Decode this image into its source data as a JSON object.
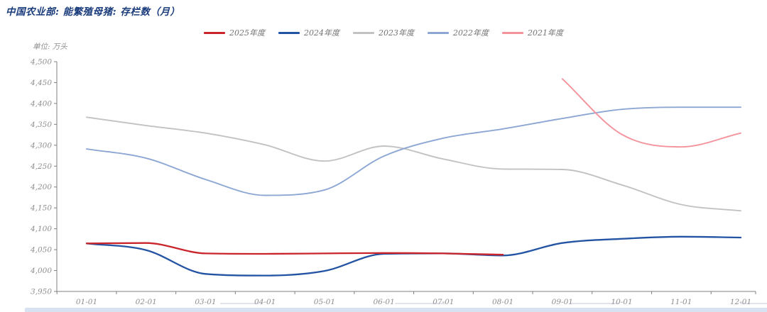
{
  "header": {
    "title": "中国农业部: 能繁殖母猪: 存栏数（月）"
  },
  "chart": {
    "unit_label": "单位: 万头",
    "axis_color": "#808080",
    "tick_label_color": "#8e8e8e",
    "background": "#ffffff"
  },
  "chart_data": {
    "type": "line",
    "title": "中国农业部: 能繁殖母猪: 存栏数（月）",
    "ylabel": "单位: 万头",
    "xlabel": "",
    "categories": [
      "01-01",
      "02-01",
      "03-01",
      "04-01",
      "05-01",
      "06-01",
      "07-01",
      "08-01",
      "09-01",
      "10-01",
      "11-01",
      "12-01"
    ],
    "ylim": [
      3950,
      4500
    ],
    "ytick_step": 50,
    "grid": false,
    "legend_position": "top-center",
    "series": [
      {
        "name": "2025年度",
        "color": "#c9252b",
        "width": 2.3,
        "values": [
          4065,
          4066,
          4041,
          4040,
          4041,
          4042,
          4041,
          4038,
          null,
          null,
          null,
          null
        ]
      },
      {
        "name": "2024年度",
        "color": "#2353a3",
        "width": 2.3,
        "values": [
          4065,
          4049,
          3992,
          3988,
          3999,
          4040,
          4041,
          4036,
          4066,
          4076,
          4081,
          4079
        ]
      },
      {
        "name": "2023年度",
        "color": "#c2c2c2",
        "width": 1.9,
        "values": [
          4367,
          4347,
          4329,
          4301,
          4262,
          4298,
          4267,
          4243,
          4242,
          4205,
          4158,
          4143
        ]
      },
      {
        "name": "2022年度",
        "color": "#8da7d4",
        "width": 1.9,
        "values": [
          4291,
          4269,
          4218,
          4180,
          4193,
          4274,
          4317,
          4339,
          4364,
          4386,
          4391,
          4391
        ]
      },
      {
        "name": "2021年度",
        "color": "#f4939c",
        "width": 1.9,
        "values": [
          null,
          null,
          null,
          null,
          null,
          null,
          null,
          null,
          4459,
          4326,
          4296,
          4329
        ]
      }
    ]
  }
}
